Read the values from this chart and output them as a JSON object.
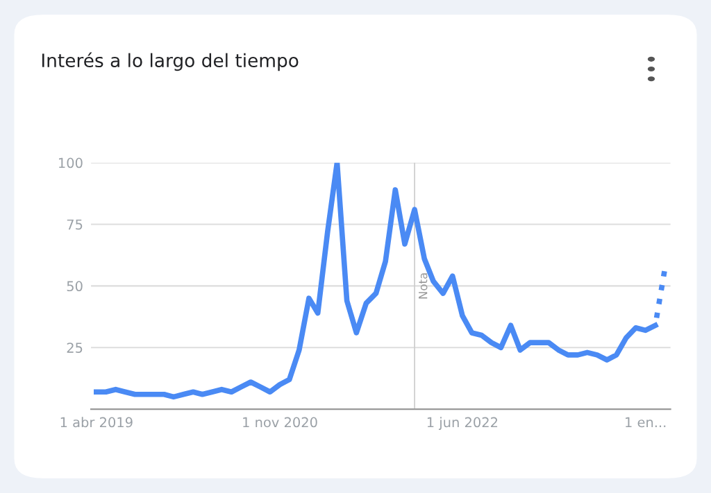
{
  "chart_data": {
    "type": "line",
    "title": "Interés a lo largo del tiempo",
    "xlim": [
      "2019-03-15",
      "2024-03-20"
    ],
    "xticks": [
      {
        "value": "2019-04-01",
        "label": "1 abr 2019"
      },
      {
        "value": "2020-11-01",
        "label": "1 nov 2020"
      },
      {
        "value": "2022-06-01",
        "label": "1 jun 2022"
      },
      {
        "value": "2024-01-01",
        "label": "1 en..."
      }
    ],
    "ylim": [
      0,
      100
    ],
    "yticks": [
      25,
      50,
      75,
      100
    ],
    "grid": "y",
    "legend": false,
    "marker": "none",
    "ref_lines": [
      {
        "axis": "x",
        "value": "2022-01-01",
        "label": "Nota",
        "color": "#cccccc"
      }
    ],
    "series": [
      {
        "color": "#4a8af4",
        "line_style": "solid",
        "x": [
          "2019-04",
          "2019-05",
          "2019-06",
          "2019-07",
          "2019-08",
          "2019-09",
          "2019-10",
          "2019-11",
          "2019-12",
          "2020-01",
          "2020-02",
          "2020-03",
          "2020-04",
          "2020-05",
          "2020-06",
          "2020-07",
          "2020-08",
          "2020-09",
          "2020-10",
          "2020-11",
          "2020-12",
          "2021-01",
          "2021-02",
          "2021-03",
          "2021-04",
          "2021-05",
          "2021-06",
          "2021-07",
          "2021-08",
          "2021-09",
          "2021-10",
          "2021-11",
          "2021-12",
          "2022-01",
          "2022-02",
          "2022-03",
          "2022-04",
          "2022-05",
          "2022-06",
          "2022-07",
          "2022-08",
          "2022-09",
          "2022-10",
          "2022-11",
          "2022-12",
          "2023-01",
          "2023-02",
          "2023-03",
          "2023-04",
          "2023-05",
          "2023-06",
          "2023-07",
          "2023-08",
          "2023-09",
          "2023-10",
          "2023-11",
          "2023-12",
          "2024-01",
          "2024-02"
        ],
        "values": [
          7,
          7,
          8,
          7,
          6,
          6,
          6,
          6,
          5,
          6,
          7,
          6,
          7,
          8,
          7,
          9,
          11,
          9,
          7,
          10,
          12,
          24,
          45,
          39,
          72,
          100,
          44,
          31,
          43,
          47,
          60,
          89,
          67,
          81,
          61,
          52,
          47,
          54,
          38,
          31,
          30,
          27,
          25,
          34,
          24,
          27,
          27,
          27,
          24,
          22,
          22,
          23,
          22,
          20,
          22,
          29,
          33,
          32,
          34
        ]
      },
      {
        "color": "#4a8af4",
        "line_style": "dotted",
        "x": [
          "2024-02",
          "2024-03"
        ],
        "values": [
          34,
          56
        ]
      }
    ]
  }
}
